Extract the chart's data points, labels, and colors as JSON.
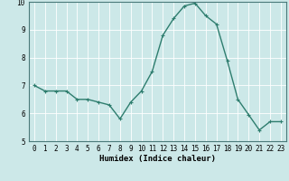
{
  "x": [
    0,
    1,
    2,
    3,
    4,
    5,
    6,
    7,
    8,
    9,
    10,
    11,
    12,
    13,
    14,
    15,
    16,
    17,
    18,
    19,
    20,
    21,
    22,
    23
  ],
  "y": [
    7.0,
    6.8,
    6.8,
    6.8,
    6.5,
    6.5,
    6.4,
    6.3,
    5.8,
    6.4,
    6.8,
    7.5,
    8.8,
    9.4,
    9.85,
    9.95,
    9.5,
    9.2,
    7.9,
    6.5,
    5.95,
    5.4,
    5.7,
    5.7
  ],
  "line_color": "#2e7d6e",
  "marker": "+",
  "marker_size": 3,
  "bg_color": "#cce8e8",
  "grid_color": "#ffffff",
  "xlabel": "Humidex (Indice chaleur)",
  "xlim": [
    -0.5,
    23.5
  ],
  "ylim": [
    5,
    10
  ],
  "yticks": [
    5,
    6,
    7,
    8,
    9,
    10
  ],
  "xticks": [
    0,
    1,
    2,
    3,
    4,
    5,
    6,
    7,
    8,
    9,
    10,
    11,
    12,
    13,
    14,
    15,
    16,
    17,
    18,
    19,
    20,
    21,
    22,
    23
  ],
  "tick_label_fontsize": 5.5,
  "xlabel_fontsize": 6.5,
  "line_width": 1.0,
  "spine_color": "#4a7a7a"
}
